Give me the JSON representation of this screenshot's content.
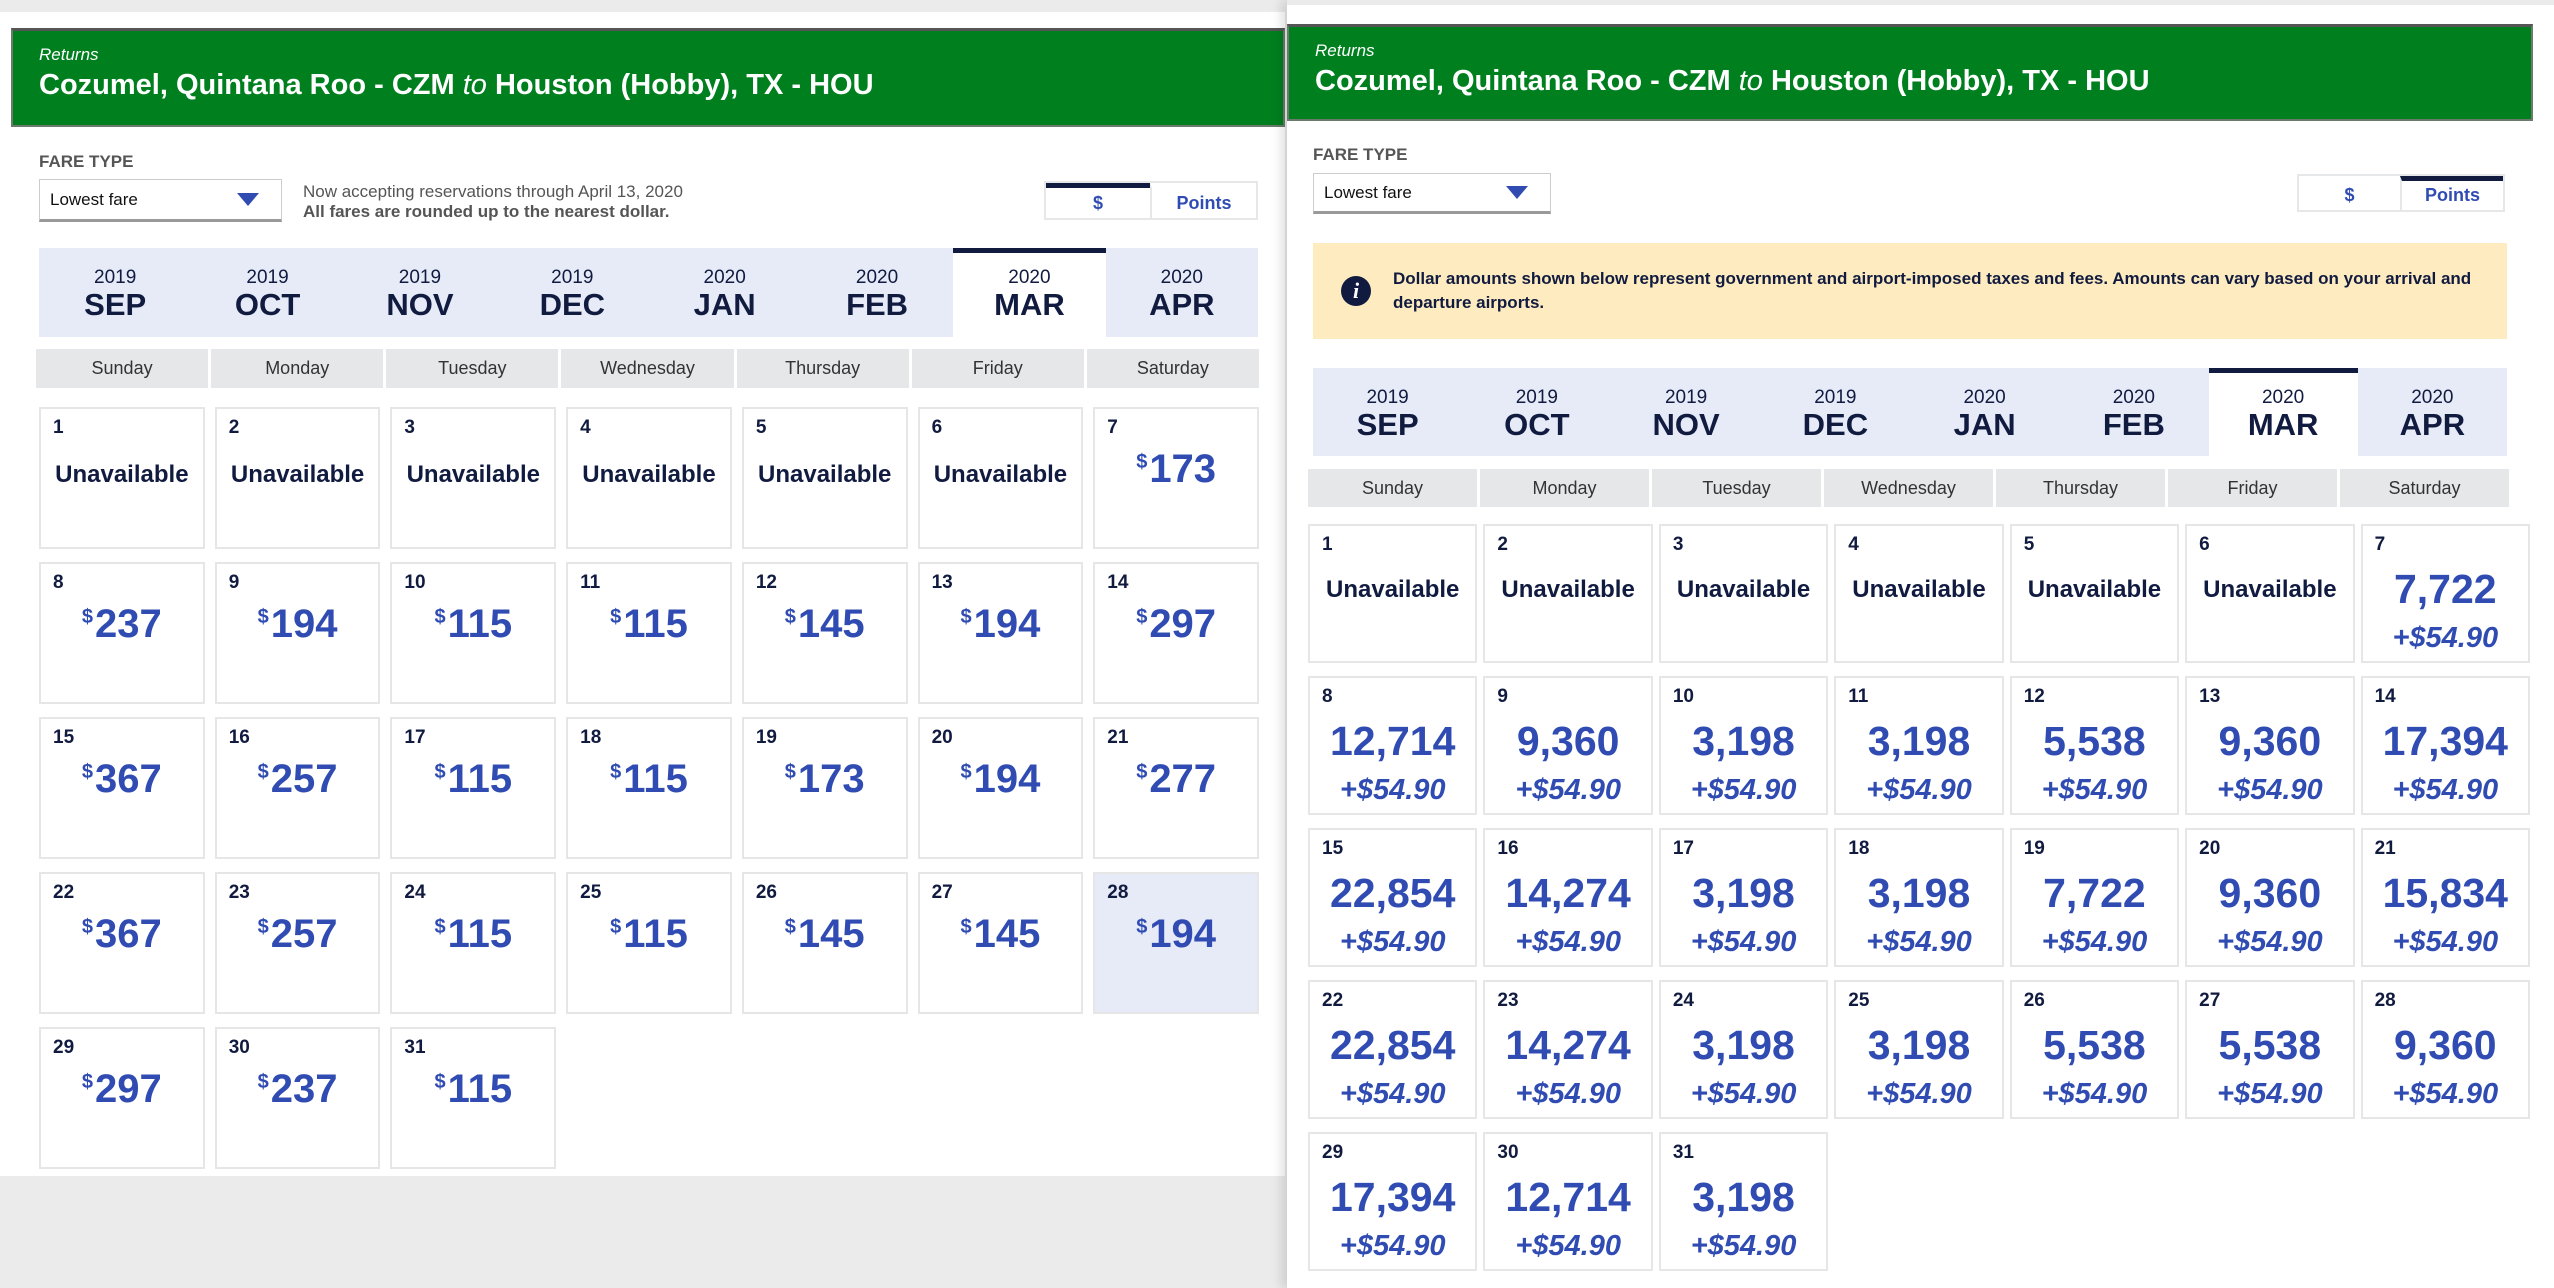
{
  "left": {
    "header": {
      "label": "Returns",
      "from": "Cozumel, Quintana Roo - CZM",
      "to_word": "to",
      "to": "Houston (Hobby), TX - HOU"
    },
    "fare_type_label": "FARE TYPE",
    "fare_select": "Lowest fare",
    "note_line1": "Now accepting reservations through April 13, 2020",
    "note_line2": "All fares are rounded up to the nearest dollar.",
    "toggle": {
      "dollar": "$",
      "points": "Points",
      "active": "dollar"
    },
    "months": [
      {
        "year": "2019",
        "name": "SEP"
      },
      {
        "year": "2019",
        "name": "OCT"
      },
      {
        "year": "2019",
        "name": "NOV"
      },
      {
        "year": "2019",
        "name": "DEC"
      },
      {
        "year": "2020",
        "name": "JAN"
      },
      {
        "year": "2020",
        "name": "FEB"
      },
      {
        "year": "2020",
        "name": "MAR"
      },
      {
        "year": "2020",
        "name": "APR"
      }
    ],
    "selected_month": 6,
    "weekdays": [
      "Sunday",
      "Monday",
      "Tuesday",
      "Wednesday",
      "Thursday",
      "Friday",
      "Saturday"
    ],
    "currency": "$",
    "highlighted_day": 28,
    "days": [
      {
        "day": "1",
        "status": "Unavailable"
      },
      {
        "day": "2",
        "status": "Unavailable"
      },
      {
        "day": "3",
        "status": "Unavailable"
      },
      {
        "day": "4",
        "status": "Unavailable"
      },
      {
        "day": "5",
        "status": "Unavailable"
      },
      {
        "day": "6",
        "status": "Unavailable"
      },
      {
        "day": "7",
        "price": "173"
      },
      {
        "day": "8",
        "price": "237"
      },
      {
        "day": "9",
        "price": "194"
      },
      {
        "day": "10",
        "price": "115"
      },
      {
        "day": "11",
        "price": "115"
      },
      {
        "day": "12",
        "price": "145"
      },
      {
        "day": "13",
        "price": "194"
      },
      {
        "day": "14",
        "price": "297"
      },
      {
        "day": "15",
        "price": "367"
      },
      {
        "day": "16",
        "price": "257"
      },
      {
        "day": "17",
        "price": "115"
      },
      {
        "day": "18",
        "price": "115"
      },
      {
        "day": "19",
        "price": "173"
      },
      {
        "day": "20",
        "price": "194"
      },
      {
        "day": "21",
        "price": "277"
      },
      {
        "day": "22",
        "price": "367"
      },
      {
        "day": "23",
        "price": "257"
      },
      {
        "day": "24",
        "price": "115"
      },
      {
        "day": "25",
        "price": "115"
      },
      {
        "day": "26",
        "price": "145"
      },
      {
        "day": "27",
        "price": "145"
      },
      {
        "day": "28",
        "price": "194"
      },
      {
        "day": "29",
        "price": "297"
      },
      {
        "day": "30",
        "price": "237"
      },
      {
        "day": "31",
        "price": "115"
      }
    ]
  },
  "right": {
    "header": {
      "label": "Returns",
      "from": "Cozumel, Quintana Roo - CZM",
      "to_word": "to",
      "to": "Houston (Hobby), TX - HOU"
    },
    "fare_type_label": "FARE TYPE",
    "fare_select": "Lowest fare",
    "toggle": {
      "dollar": "$",
      "points": "Points",
      "active": "points"
    },
    "info": "Dollar amounts shown below represent government and airport-imposed taxes and fees. Amounts can vary based on your arrival and departure airports.",
    "months": [
      {
        "year": "2019",
        "name": "SEP"
      },
      {
        "year": "2019",
        "name": "OCT"
      },
      {
        "year": "2019",
        "name": "NOV"
      },
      {
        "year": "2019",
        "name": "DEC"
      },
      {
        "year": "2020",
        "name": "JAN"
      },
      {
        "year": "2020",
        "name": "FEB"
      },
      {
        "year": "2020",
        "name": "MAR"
      },
      {
        "year": "2020",
        "name": "APR"
      }
    ],
    "selected_month": 6,
    "weekdays": [
      "Sunday",
      "Monday",
      "Tuesday",
      "Wednesday",
      "Thursday",
      "Friday",
      "Saturday"
    ],
    "days": [
      {
        "day": "1",
        "status": "Unavailable"
      },
      {
        "day": "2",
        "status": "Unavailable"
      },
      {
        "day": "3",
        "status": "Unavailable"
      },
      {
        "day": "4",
        "status": "Unavailable"
      },
      {
        "day": "5",
        "status": "Unavailable"
      },
      {
        "day": "6",
        "status": "Unavailable"
      },
      {
        "day": "7",
        "points": "7,722",
        "fee": "+$54.90"
      },
      {
        "day": "8",
        "points": "12,714",
        "fee": "+$54.90"
      },
      {
        "day": "9",
        "points": "9,360",
        "fee": "+$54.90"
      },
      {
        "day": "10",
        "points": "3,198",
        "fee": "+$54.90"
      },
      {
        "day": "11",
        "points": "3,198",
        "fee": "+$54.90"
      },
      {
        "day": "12",
        "points": "5,538",
        "fee": "+$54.90"
      },
      {
        "day": "13",
        "points": "9,360",
        "fee": "+$54.90"
      },
      {
        "day": "14",
        "points": "17,394",
        "fee": "+$54.90"
      },
      {
        "day": "15",
        "points": "22,854",
        "fee": "+$54.90"
      },
      {
        "day": "16",
        "points": "14,274",
        "fee": "+$54.90"
      },
      {
        "day": "17",
        "points": "3,198",
        "fee": "+$54.90"
      },
      {
        "day": "18",
        "points": "3,198",
        "fee": "+$54.90"
      },
      {
        "day": "19",
        "points": "7,722",
        "fee": "+$54.90"
      },
      {
        "day": "20",
        "points": "9,360",
        "fee": "+$54.90"
      },
      {
        "day": "21",
        "points": "15,834",
        "fee": "+$54.90"
      },
      {
        "day": "22",
        "points": "22,854",
        "fee": "+$54.90"
      },
      {
        "day": "23",
        "points": "14,274",
        "fee": "+$54.90"
      },
      {
        "day": "24",
        "points": "3,198",
        "fee": "+$54.90"
      },
      {
        "day": "25",
        "points": "3,198",
        "fee": "+$54.90"
      },
      {
        "day": "26",
        "points": "5,538",
        "fee": "+$54.90"
      },
      {
        "day": "27",
        "points": "5,538",
        "fee": "+$54.90"
      },
      {
        "day": "28",
        "points": "9,360",
        "fee": "+$54.90"
      },
      {
        "day": "29",
        "points": "17,394",
        "fee": "+$54.90"
      },
      {
        "day": "30",
        "points": "12,714",
        "fee": "+$54.90"
      },
      {
        "day": "31",
        "points": "3,198",
        "fee": "+$54.90"
      }
    ]
  }
}
